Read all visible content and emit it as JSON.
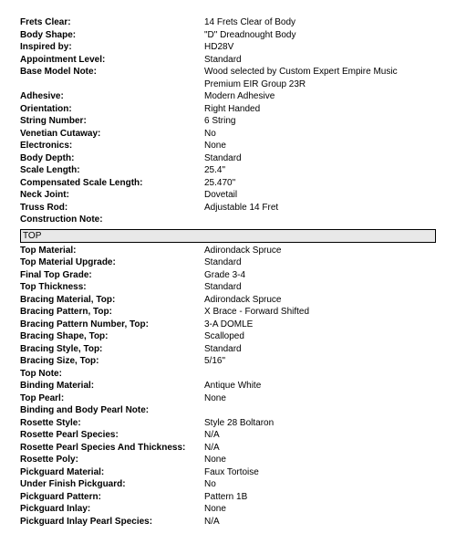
{
  "general": [
    {
      "label": "Frets Clear:",
      "value": "14 Frets Clear of Body"
    },
    {
      "label": "Body Shape:",
      "value": "\"D\" Dreadnought Body"
    },
    {
      "label": "Inspired by:",
      "value": "HD28V"
    },
    {
      "label": "Appointment Level:",
      "value": "Standard"
    },
    {
      "label": "Base Model Note:",
      "value": "Wood selected by Custom Expert Empire Music Premium EIR Group 23R"
    },
    {
      "label": "Adhesive:",
      "value": "Modern Adhesive"
    },
    {
      "label": "Orientation:",
      "value": "Right Handed"
    },
    {
      "label": "String Number:",
      "value": "6 String"
    },
    {
      "label": "Venetian Cutaway:",
      "value": "No"
    },
    {
      "label": "Electronics:",
      "value": "None"
    },
    {
      "label": "Body Depth:",
      "value": "Standard"
    },
    {
      "label": "Scale Length:",
      "value": "25.4\""
    },
    {
      "label": "Compensated Scale Length:",
      "value": "25.470\""
    },
    {
      "label": "Neck Joint:",
      "value": "Dovetail"
    },
    {
      "label": "Truss Rod:",
      "value": "Adjustable 14 Fret"
    },
    {
      "label": "Construction Note:",
      "value": ""
    }
  ],
  "section_top_header": "TOP",
  "top": [
    {
      "label": "Top Material:",
      "value": "Adirondack Spruce"
    },
    {
      "label": "Top Material Upgrade:",
      "value": "Standard"
    },
    {
      "label": "Final Top Grade:",
      "value": "Grade 3-4"
    },
    {
      "label": "Top Thickness:",
      "value": "Standard"
    },
    {
      "label": "Bracing Material, Top:",
      "value": "Adirondack Spruce"
    },
    {
      "label": "Bracing Pattern, Top:",
      "value": "X Brace - Forward Shifted"
    },
    {
      "label": "Bracing Pattern Number, Top:",
      "value": "3-A DOMLE"
    },
    {
      "label": "Bracing Shape, Top:",
      "value": "Scalloped"
    },
    {
      "label": "Bracing Style, Top:",
      "value": "Standard"
    },
    {
      "label": "Bracing Size, Top:",
      "value": "5/16\""
    },
    {
      "label": "Top Note:",
      "value": ""
    },
    {
      "label": "Binding Material:",
      "value": "Antique White"
    },
    {
      "label": "Top Pearl:",
      "value": "None"
    },
    {
      "label": "Binding and Body Pearl Note:",
      "value": ""
    },
    {
      "label": "Rosette Style:",
      "value": "Style 28 Boltaron"
    },
    {
      "label": "Rosette Pearl Species:",
      "value": "N/A"
    },
    {
      "label": "Rosette Pearl Species And Thickness:",
      "value": "N/A"
    },
    {
      "label": "Rosette Poly:",
      "value": "None"
    },
    {
      "label": "Pickguard Material:",
      "value": "Faux Tortoise"
    },
    {
      "label": "Under Finish Pickguard:",
      "value": "No"
    },
    {
      "label": "Pickguard Pattern:",
      "value": "Pattern 1B"
    },
    {
      "label": "Pickguard Inlay:",
      "value": "None"
    },
    {
      "label": "Pickguard Inlay Pearl Species:",
      "value": "N/A"
    }
  ]
}
